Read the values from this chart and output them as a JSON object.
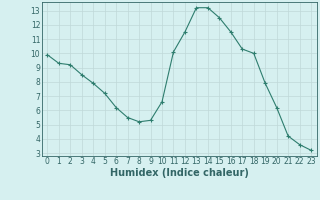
{
  "x": [
    0,
    1,
    2,
    3,
    4,
    5,
    6,
    7,
    8,
    9,
    10,
    11,
    12,
    13,
    14,
    15,
    16,
    17,
    18,
    19,
    20,
    21,
    22,
    23
  ],
  "y": [
    9.9,
    9.3,
    9.2,
    8.5,
    7.9,
    7.2,
    6.2,
    5.5,
    5.2,
    5.3,
    6.6,
    10.1,
    11.5,
    13.2,
    13.2,
    12.5,
    11.5,
    10.3,
    10.0,
    7.9,
    6.2,
    4.2,
    3.6,
    3.2
  ],
  "line_color": "#2e7d6e",
  "marker": "+",
  "marker_size": 3,
  "bg_color": "#d6f0f0",
  "grid_color": "#c0d8d8",
  "xlabel": "Humidex (Indice chaleur)",
  "xlim": [
    -0.5,
    23.5
  ],
  "ylim": [
    2.8,
    13.6
  ],
  "yticks": [
    3,
    4,
    5,
    6,
    7,
    8,
    9,
    10,
    11,
    12,
    13
  ],
  "xticks": [
    0,
    1,
    2,
    3,
    4,
    5,
    6,
    7,
    8,
    9,
    10,
    11,
    12,
    13,
    14,
    15,
    16,
    17,
    18,
    19,
    20,
    21,
    22,
    23
  ],
  "tick_fontsize": 5.5,
  "xlabel_fontsize": 7,
  "spine_color": "#336666",
  "axis_bg": "#d6f0f0"
}
